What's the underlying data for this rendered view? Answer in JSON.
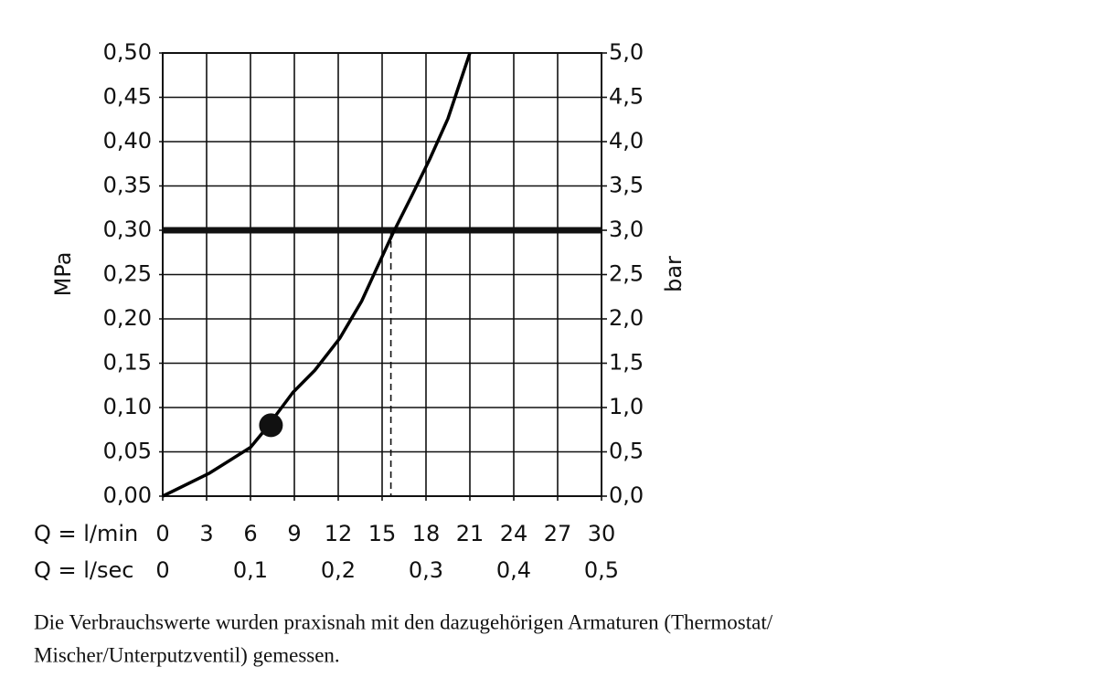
{
  "chart_data": {
    "type": "line",
    "x_label": "Q = l/min",
    "x2_label": "Q = l/sec",
    "y_label": "MPa",
    "y2_label": "bar",
    "x": [
      0,
      3.2,
      6,
      7,
      8.9,
      10.4,
      12.1,
      13.6,
      14.6,
      15.75,
      17,
      18.25,
      19.5,
      21
    ],
    "values": [
      0,
      0.026,
      0.055,
      0.075,
      0.117,
      0.142,
      0.178,
      0.22,
      0.256,
      0.297,
      0.338,
      0.38,
      0.426,
      0.5
    ],
    "color": "#000000",
    "xlim": [
      0,
      30
    ],
    "xticks": [
      0,
      3,
      6,
      9,
      12,
      15,
      18,
      21,
      24,
      27,
      30
    ],
    "x2lim": [
      0,
      0.5
    ],
    "x2ticks": [
      0,
      {
        "value": 0.1,
        "label": "0,1"
      },
      {
        "value": 0.2,
        "label": "0,2"
      },
      {
        "value": 0.3,
        "label": "0,3"
      },
      {
        "value": 0.4,
        "label": "0,4"
      },
      {
        "value": 0.5,
        "label": "0,5"
      }
    ],
    "ylim": [
      0,
      0.5
    ],
    "yticks": [
      {
        "value": 0,
        "label": "0,00"
      },
      {
        "value": 0.05,
        "label": "0,05"
      },
      {
        "value": 0.1,
        "label": "0,10"
      },
      {
        "value": 0.15,
        "label": "0,15"
      },
      {
        "value": 0.2,
        "label": "0,20"
      },
      {
        "value": 0.25,
        "label": "0,25"
      },
      {
        "value": 0.3,
        "label": "0,30"
      },
      {
        "value": 0.35,
        "label": "0,35"
      },
      {
        "value": 0.4,
        "label": "0,40"
      },
      {
        "value": 0.45,
        "label": "0,45"
      },
      {
        "value": 0.5,
        "label": "0,50"
      }
    ],
    "y2lim": [
      0,
      5
    ],
    "y2ticks": [
      {
        "value": 0,
        "label": "0,0"
      },
      {
        "value": 0.5,
        "label": "0,5"
      },
      {
        "value": 1,
        "label": "1,0"
      },
      {
        "value": 1.5,
        "label": "1,5"
      },
      {
        "value": 2,
        "label": "2,0"
      },
      {
        "value": 2.5,
        "label": "2,5"
      },
      {
        "value": 3,
        "label": "3,0"
      },
      {
        "value": 3.5,
        "label": "3,5"
      },
      {
        "value": 4,
        "label": "4,0"
      },
      {
        "value": 4.5,
        "label": "4,5"
      },
      {
        "value": 5,
        "label": "5,0"
      }
    ],
    "grid": true,
    "reference_line": {
      "y": 0.3
    },
    "dashed_line": {
      "x": 15.6
    },
    "marker": {
      "x": 7.4,
      "y": 0.08
    },
    "caption": [
      "Die Verbrauchswerte wurden praxisnah mit den dazugehörigen Armaturen (Thermostat/",
      "Mischer/Unterputzventil) gemessen."
    ]
  }
}
